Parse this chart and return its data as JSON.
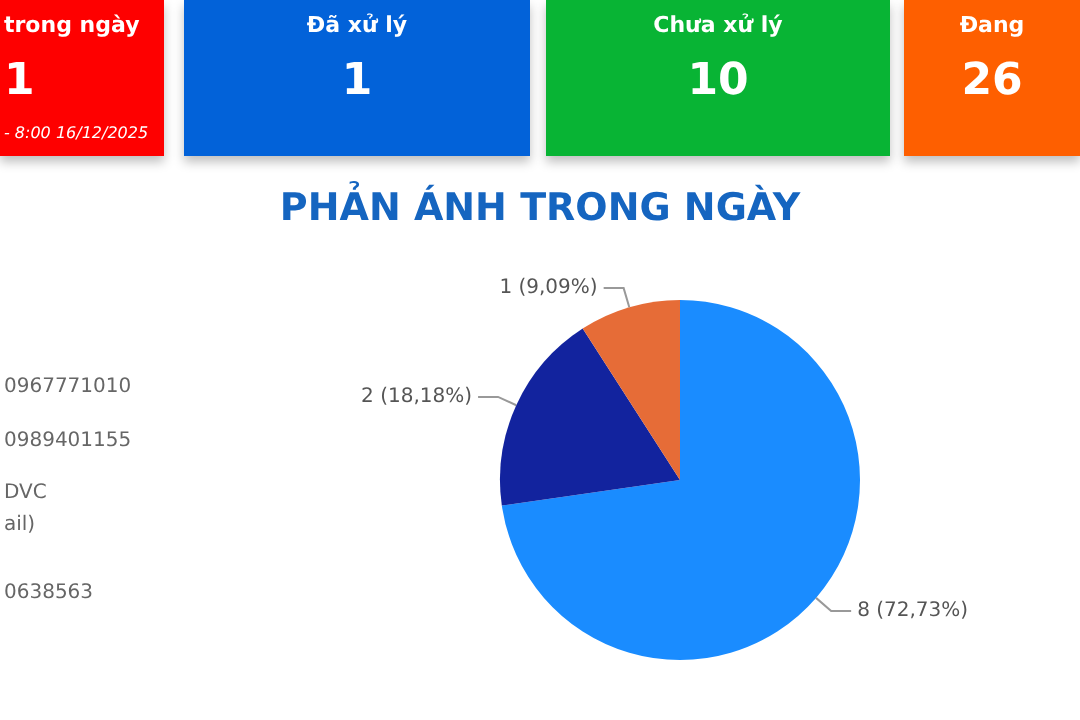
{
  "chart_data": [
    {
      "type": "other",
      "categories": [
        "trong ngày",
        "Đã xử lý",
        "Chưa xử lý",
        "Đang"
      ],
      "values": [
        1,
        1,
        10,
        26
      ],
      "colors": [
        "#fe0000",
        "#0262d9",
        "#08b434",
        "#fe5f00"
      ],
      "data_labels": true,
      "annotations": [
        "- 8:00 16/12/2025"
      ]
    },
    {
      "type": "pie",
      "title": "PHẢN ÁNH TRONG NGÀY",
      "categories": [
        null,
        null,
        null
      ],
      "values": [
        8,
        2,
        1
      ],
      "colors": [
        "#1a8cff",
        "#12239e",
        "#e66c37"
      ],
      "value_labels": [
        "8 (72,73%)",
        "2 (18,18%)",
        "1 (9,09%)"
      ],
      "annotations": [
        "0967771010",
        "0989401155",
        "DVC",
        "ail)",
        "0638563"
      ]
    }
  ]
}
